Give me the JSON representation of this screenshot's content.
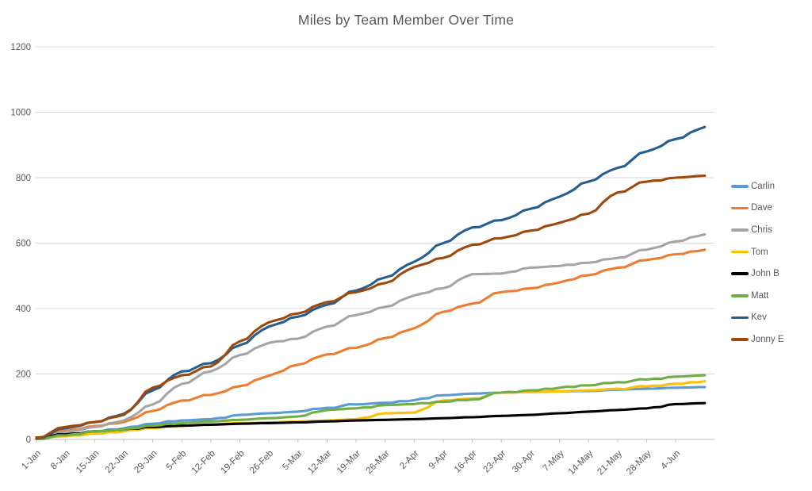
{
  "title": "Miles by Team Member Over Time",
  "colors": {
    "title_text": "#595959",
    "axis_text": "#595959",
    "gridline": "#d9d9d9",
    "axis_line": "#bfbfbf",
    "background": "#ffffff"
  },
  "chart_data": {
    "type": "line",
    "title": "Miles by Team Member Over Time",
    "xlabel": "",
    "ylabel": "",
    "ylim": [
      0,
      1200
    ],
    "y_tick_interval": 200,
    "y_tick_labels": [
      "0",
      "200",
      "400",
      "600",
      "800",
      "1000",
      "1200"
    ],
    "grid": "horizontal",
    "legend_position": "right",
    "x_tick_days": [
      0,
      7,
      14,
      21,
      28,
      35,
      42,
      49,
      56,
      63,
      70,
      77,
      84,
      91,
      98,
      105,
      112,
      119,
      126,
      133,
      140,
      147,
      154
    ],
    "x_tick_labels": [
      "1-Jan",
      "8-Jan",
      "15-Jan",
      "22-Jan",
      "29-Jan",
      "5-Feb",
      "12-Feb",
      "19-Feb",
      "26-Feb",
      "5-Mar",
      "12-Mar",
      "19-Mar",
      "26-Mar",
      "2-Apr",
      "9-Apr",
      "16-Apr",
      "23-Apr",
      "30-Apr",
      "7-May",
      "14-May",
      "21-May",
      "28-May",
      "4-Jun"
    ],
    "x_days": [
      0,
      7,
      14,
      21,
      28,
      35,
      42,
      49,
      56,
      63,
      70,
      77,
      84,
      91,
      98,
      105,
      112,
      119,
      126,
      133,
      140,
      147,
      154,
      161
    ],
    "x_domain_max": 162,
    "series": [
      {
        "name": "Carlin",
        "color": "#5b9bd5",
        "values": [
          2,
          15,
          25,
          34,
          48,
          58,
          62,
          75,
          80,
          85,
          97,
          107,
          112,
          120,
          135,
          140,
          143,
          145,
          147,
          148,
          152,
          155,
          158,
          160
        ]
      },
      {
        "name": "Dave",
        "color": "#ed7d31",
        "values": [
          3,
          26,
          41,
          53,
          87,
          119,
          136,
          163,
          195,
          228,
          260,
          280,
          310,
          340,
          390,
          415,
          450,
          462,
          480,
          502,
          525,
          548,
          566,
          580
        ]
      },
      {
        "name": "Chris",
        "color": "#a5a5a5",
        "values": [
          2,
          22,
          38,
          58,
          107,
          170,
          208,
          258,
          295,
          308,
          345,
          380,
          405,
          440,
          462,
          505,
          507,
          525,
          530,
          540,
          555,
          580,
          605,
          627
        ]
      },
      {
        "name": "Tom",
        "color": "#ffc000",
        "values": [
          4,
          10,
          18,
          25,
          35,
          42,
          46,
          50,
          52,
          55,
          58,
          62,
          80,
          82,
          119,
          125,
          143,
          145,
          147,
          150,
          155,
          162,
          170,
          178
        ]
      },
      {
        "name": "John B",
        "color": "#000000",
        "values": [
          6,
          15,
          25,
          30,
          38,
          42,
          45,
          48,
          50,
          52,
          55,
          58,
          60,
          62,
          65,
          68,
          72,
          75,
          80,
          85,
          90,
          95,
          108,
          111
        ]
      },
      {
        "name": "Matt",
        "color": "#70ad47",
        "values": [
          2,
          12,
          25,
          30,
          42,
          50,
          55,
          60,
          65,
          70,
          90,
          95,
          105,
          108,
          115,
          122,
          143,
          150,
          158,
          165,
          175,
          183,
          192,
          196
        ]
      },
      {
        "name": "Kev",
        "color": "#255e91",
        "values": [
          3,
          34,
          53,
          78,
          150,
          208,
          233,
          288,
          345,
          375,
          412,
          455,
          495,
          543,
          600,
          648,
          670,
          705,
          742,
          788,
          830,
          880,
          918,
          955
        ]
      },
      {
        "name": "Jonny E",
        "color": "#9e480e",
        "values": [
          5,
          38,
          53,
          75,
          158,
          196,
          223,
          300,
          358,
          385,
          420,
          450,
          478,
          527,
          555,
          595,
          615,
          638,
          662,
          690,
          755,
          788,
          800,
          806
        ]
      }
    ]
  }
}
